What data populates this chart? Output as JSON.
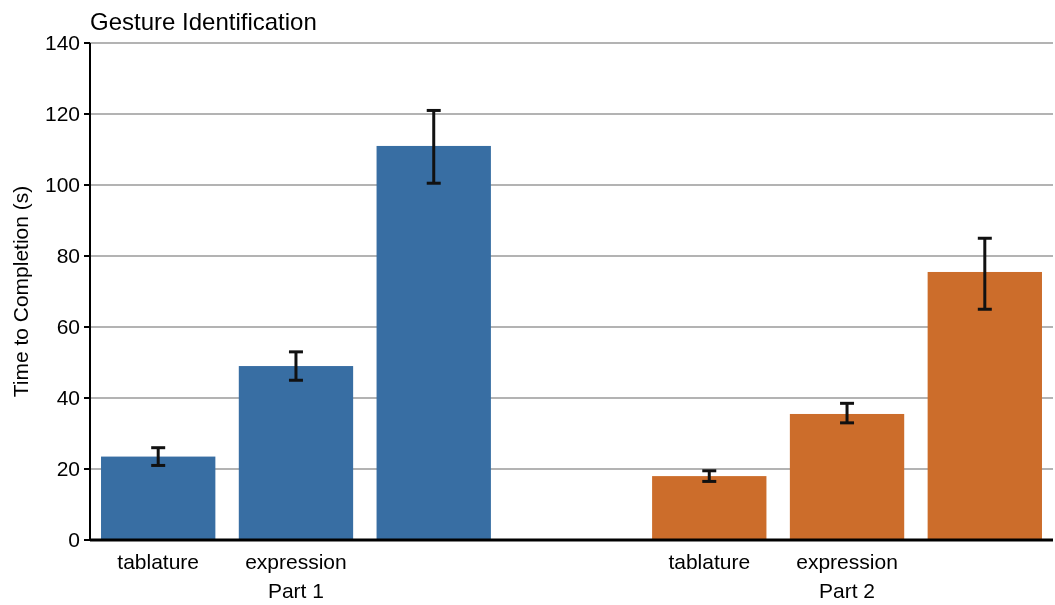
{
  "chart_data": {
    "type": "bar",
    "title": "Gesture Identification",
    "ylabel": "Time to Completion (s)",
    "categories": [
      "tablature",
      "expression",
      null,
      null,
      "tablature",
      "expression",
      null
    ],
    "series": [
      {
        "name": "Part 1",
        "color": "#386ea3",
        "values": [
          23.5,
          49,
          111,
          null,
          null,
          null,
          null
        ],
        "errors": [
          [
            21,
            26
          ],
          [
            45,
            53
          ],
          [
            100.5,
            121
          ],
          null,
          null,
          null,
          null
        ]
      },
      {
        "name": "Part 2",
        "color": "#cc6d2b",
        "values": [
          null,
          null,
          null,
          null,
          18,
          35.5,
          75.5
        ],
        "errors": [
          null,
          null,
          null,
          null,
          [
            16.5,
            19.5
          ],
          [
            33,
            38.5
          ],
          [
            65,
            85
          ]
        ]
      }
    ],
    "ylim": [
      0,
      140
    ],
    "yticks": [
      0,
      20,
      40,
      60,
      80,
      100,
      120,
      140
    ],
    "grid": "y"
  }
}
